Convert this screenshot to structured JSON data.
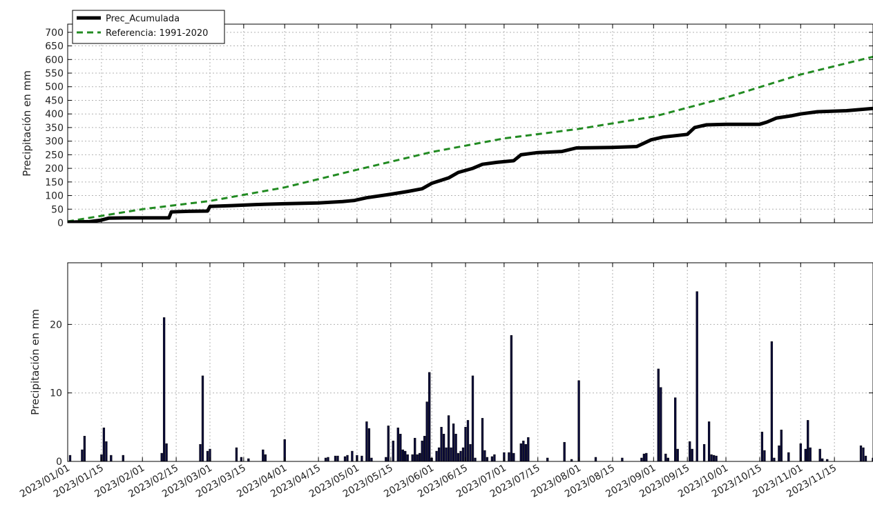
{
  "chart_data": [
    {
      "type": "line",
      "ylabel": "Precipitación en mm",
      "ylim": [
        0,
        730
      ],
      "yticks": [
        0,
        50,
        100,
        150,
        200,
        250,
        300,
        350,
        400,
        450,
        500,
        550,
        600,
        650,
        700
      ],
      "xlim": [
        "2023-01-01",
        "2023-12-01"
      ],
      "grid": true,
      "legend_position": "top-left",
      "series": [
        {
          "name": "Prec_Acumulada",
          "color": "#000000",
          "style": "solid",
          "points": [
            [
              "2023-01-01",
              2
            ],
            [
              "2023-01-05",
              3
            ],
            [
              "2023-01-10",
              4
            ],
            [
              "2023-01-15",
              10
            ],
            [
              "2023-01-18",
              17
            ],
            [
              "2023-01-25",
              18
            ],
            [
              "2023-02-01",
              18
            ],
            [
              "2023-02-05",
              18
            ],
            [
              "2023-02-12",
              18
            ],
            [
              "2023-02-13",
              40
            ],
            [
              "2023-02-20",
              42
            ],
            [
              "2023-02-28",
              43
            ],
            [
              "2023-03-01",
              60
            ],
            [
              "2023-03-10",
              63
            ],
            [
              "2023-03-20",
              67
            ],
            [
              "2023-04-01",
              70
            ],
            [
              "2023-04-15",
              73
            ],
            [
              "2023-04-25",
              78
            ],
            [
              "2023-04-30",
              82
            ],
            [
              "2023-05-05",
              92
            ],
            [
              "2023-05-15",
              105
            ],
            [
              "2023-05-22",
              115
            ],
            [
              "2023-05-28",
              125
            ],
            [
              "2023-06-01",
              145
            ],
            [
              "2023-06-08",
              165
            ],
            [
              "2023-06-12",
              185
            ],
            [
              "2023-06-18",
              200
            ],
            [
              "2023-06-22",
              215
            ],
            [
              "2023-06-28",
              222
            ],
            [
              "2023-07-05",
              228
            ],
            [
              "2023-07-08",
              250
            ],
            [
              "2023-07-15",
              258
            ],
            [
              "2023-07-25",
              262
            ],
            [
              "2023-07-31",
              275
            ],
            [
              "2023-08-15",
              277
            ],
            [
              "2023-08-25",
              280
            ],
            [
              "2023-08-31",
              305
            ],
            [
              "2023-09-05",
              315
            ],
            [
              "2023-09-15",
              325
            ],
            [
              "2023-09-18",
              350
            ],
            [
              "2023-09-23",
              360
            ],
            [
              "2023-10-01",
              362
            ],
            [
              "2023-10-15",
              362
            ],
            [
              "2023-10-18",
              370
            ],
            [
              "2023-10-22",
              385
            ],
            [
              "2023-10-28",
              393
            ],
            [
              "2023-11-01",
              400
            ],
            [
              "2023-11-08",
              408
            ],
            [
              "2023-11-20",
              412
            ],
            [
              "2023-12-01",
              420
            ]
          ]
        },
        {
          "name": "Referencia: 1991-2020",
          "color": "#228b22",
          "style": "dashed",
          "points": [
            [
              "2023-01-01",
              5
            ],
            [
              "2023-02-01",
              50
            ],
            [
              "2023-03-01",
              80
            ],
            [
              "2023-04-01",
              130
            ],
            [
              "2023-05-01",
              195
            ],
            [
              "2023-06-01",
              260
            ],
            [
              "2023-07-01",
              310
            ],
            [
              "2023-08-01",
              345
            ],
            [
              "2023-09-01",
              390
            ],
            [
              "2023-10-01",
              460
            ],
            [
              "2023-11-01",
              545
            ],
            [
              "2023-12-01",
              610
            ]
          ]
        }
      ]
    },
    {
      "type": "bar",
      "ylabel": "Precipitación en mm",
      "ylim": [
        0,
        29
      ],
      "yticks": [
        0,
        10,
        20
      ],
      "xlim": [
        "2023-01-01",
        "2023-12-01"
      ],
      "xticks": [
        "2023/01/01",
        "2023/01/15",
        "2023/02/01",
        "2023/02/15",
        "2023/03/01",
        "2023/03/15",
        "2023/04/01",
        "2023/04/15",
        "2023/05/01",
        "2023/05/15",
        "2023/06/01",
        "2023/06/15",
        "2023/07/01",
        "2023/07/15",
        "2023/08/01",
        "2023/08/15",
        "2023/09/01",
        "2023/09/15",
        "2023/10/01",
        "2023/10/15",
        "2023/11/01",
        "2023/11/15"
      ],
      "grid": true,
      "bar_color": "#0a0a3a",
      "points": [
        [
          "2023-01-02",
          0.9
        ],
        [
          "2023-01-07",
          1.7
        ],
        [
          "2023-01-08",
          3.7
        ],
        [
          "2023-01-15",
          1.0
        ],
        [
          "2023-01-16",
          4.9
        ],
        [
          "2023-01-17",
          2.9
        ],
        [
          "2023-01-19",
          0.9
        ],
        [
          "2023-01-24",
          0.9
        ],
        [
          "2023-02-09",
          1.2
        ],
        [
          "2023-02-10",
          21.0
        ],
        [
          "2023-02-11",
          2.6
        ],
        [
          "2023-02-25",
          2.5
        ],
        [
          "2023-02-26",
          12.5
        ],
        [
          "2023-02-28",
          1.5
        ],
        [
          "2023-03-01",
          1.8
        ],
        [
          "2023-03-12",
          2.0
        ],
        [
          "2023-03-14",
          0.6
        ],
        [
          "2023-03-17",
          0.4
        ],
        [
          "2023-03-23",
          1.7
        ],
        [
          "2023-03-24",
          1.0
        ],
        [
          "2023-04-01",
          3.2
        ],
        [
          "2023-04-18",
          0.5
        ],
        [
          "2023-04-19",
          0.6
        ],
        [
          "2023-04-22",
          0.8
        ],
        [
          "2023-04-23",
          0.8
        ],
        [
          "2023-04-26",
          0.7
        ],
        [
          "2023-04-27",
          0.9
        ],
        [
          "2023-04-29",
          1.5
        ],
        [
          "2023-05-01",
          0.9
        ],
        [
          "2023-05-03",
          0.8
        ],
        [
          "2023-05-05",
          5.8
        ],
        [
          "2023-05-06",
          4.8
        ],
        [
          "2023-05-07",
          0.5
        ],
        [
          "2023-05-13",
          0.6
        ],
        [
          "2023-05-14",
          5.2
        ],
        [
          "2023-05-16",
          3.0
        ],
        [
          "2023-05-18",
          4.9
        ],
        [
          "2023-05-19",
          4.0
        ],
        [
          "2023-05-20",
          1.7
        ],
        [
          "2023-05-21",
          1.5
        ],
        [
          "2023-05-22",
          1.0
        ],
        [
          "2023-05-24",
          1.0
        ],
        [
          "2023-05-25",
          3.4
        ],
        [
          "2023-05-26",
          1.0
        ],
        [
          "2023-05-27",
          1.2
        ],
        [
          "2023-05-28",
          3.0
        ],
        [
          "2023-05-29",
          3.7
        ],
        [
          "2023-05-30",
          8.7
        ],
        [
          "2023-05-31",
          13.0
        ],
        [
          "2023-06-01",
          0.5
        ],
        [
          "2023-06-03",
          1.5
        ],
        [
          "2023-06-04",
          2.0
        ],
        [
          "2023-06-05",
          5.0
        ],
        [
          "2023-06-06",
          4.0
        ],
        [
          "2023-06-07",
          2.0
        ],
        [
          "2023-06-08",
          6.7
        ],
        [
          "2023-06-09",
          2.0
        ],
        [
          "2023-06-10",
          5.5
        ],
        [
          "2023-06-11",
          4.0
        ],
        [
          "2023-06-12",
          1.2
        ],
        [
          "2023-06-13",
          1.5
        ],
        [
          "2023-06-14",
          2.0
        ],
        [
          "2023-06-15",
          5.0
        ],
        [
          "2023-06-16",
          6.0
        ],
        [
          "2023-06-17",
          2.5
        ],
        [
          "2023-06-18",
          12.5
        ],
        [
          "2023-06-19",
          0.5
        ],
        [
          "2023-06-22",
          6.3
        ],
        [
          "2023-06-23",
          1.6
        ],
        [
          "2023-06-24",
          0.6
        ],
        [
          "2023-06-26",
          0.7
        ],
        [
          "2023-06-27",
          1.0
        ],
        [
          "2023-07-01",
          1.3
        ],
        [
          "2023-07-03",
          1.3
        ],
        [
          "2023-07-04",
          18.4
        ],
        [
          "2023-07-05",
          1.2
        ],
        [
          "2023-07-08",
          2.6
        ],
        [
          "2023-07-09",
          3.0
        ],
        [
          "2023-07-10",
          2.5
        ],
        [
          "2023-07-11",
          3.5
        ],
        [
          "2023-07-19",
          0.5
        ],
        [
          "2023-07-26",
          2.8
        ],
        [
          "2023-07-29",
          0.3
        ],
        [
          "2023-08-01",
          11.8
        ],
        [
          "2023-08-08",
          0.6
        ],
        [
          "2023-08-19",
          0.5
        ],
        [
          "2023-08-27",
          0.5
        ],
        [
          "2023-08-28",
          1.1
        ],
        [
          "2023-08-29",
          1.2
        ],
        [
          "2023-09-03",
          13.5
        ],
        [
          "2023-09-04",
          10.8
        ],
        [
          "2023-09-06",
          1.1
        ],
        [
          "2023-09-07",
          0.5
        ],
        [
          "2023-09-10",
          9.3
        ],
        [
          "2023-09-11",
          1.8
        ],
        [
          "2023-09-16",
          2.9
        ],
        [
          "2023-09-17",
          1.8
        ],
        [
          "2023-09-19",
          24.8
        ],
        [
          "2023-09-22",
          2.5
        ],
        [
          "2023-09-24",
          5.8
        ],
        [
          "2023-09-25",
          1.0
        ],
        [
          "2023-09-26",
          0.9
        ],
        [
          "2023-09-27",
          0.8
        ],
        [
          "2023-10-16",
          4.3
        ],
        [
          "2023-10-17",
          1.6
        ],
        [
          "2023-10-20",
          17.5
        ],
        [
          "2023-10-21",
          0.5
        ],
        [
          "2023-10-23",
          2.3
        ],
        [
          "2023-10-24",
          4.6
        ],
        [
          "2023-10-27",
          1.3
        ],
        [
          "2023-11-01",
          2.6
        ],
        [
          "2023-11-03",
          1.8
        ],
        [
          "2023-11-04",
          6.0
        ],
        [
          "2023-11-05",
          2.0
        ],
        [
          "2023-11-09",
          1.8
        ],
        [
          "2023-11-10",
          0.4
        ],
        [
          "2023-11-12",
          0.3
        ],
        [
          "2023-11-26",
          2.3
        ],
        [
          "2023-11-27",
          2.0
        ],
        [
          "2023-11-28",
          0.8
        ],
        [
          "2023-12-01",
          0.5
        ]
      ]
    }
  ]
}
